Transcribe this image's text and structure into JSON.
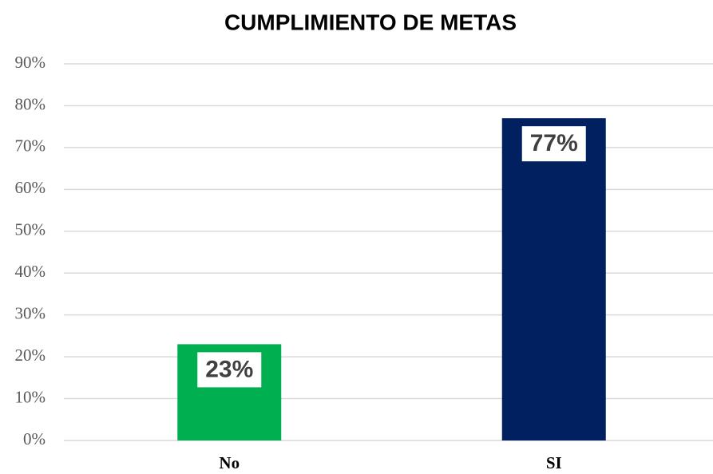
{
  "chart_data": {
    "type": "bar",
    "title": "CUMPLIMIENTO DE METAS",
    "categories": [
      "No",
      "SI"
    ],
    "values": [
      23,
      77
    ],
    "value_labels": [
      "23%",
      "77%"
    ],
    "colors": [
      "#00b050",
      "#002060"
    ],
    "ylim": [
      0,
      90
    ],
    "yticks": [
      {
        "value": 0,
        "label": "0%"
      },
      {
        "value": 10,
        "label": "10%"
      },
      {
        "value": 20,
        "label": "20%"
      },
      {
        "value": 30,
        "label": "30%"
      },
      {
        "value": 40,
        "label": "40%"
      },
      {
        "value": 50,
        "label": "50%"
      },
      {
        "value": 60,
        "label": "60%"
      },
      {
        "value": 70,
        "label": "70%"
      },
      {
        "value": 80,
        "label": "80%"
      },
      {
        "value": 90,
        "label": "90%"
      }
    ],
    "grid": true
  }
}
